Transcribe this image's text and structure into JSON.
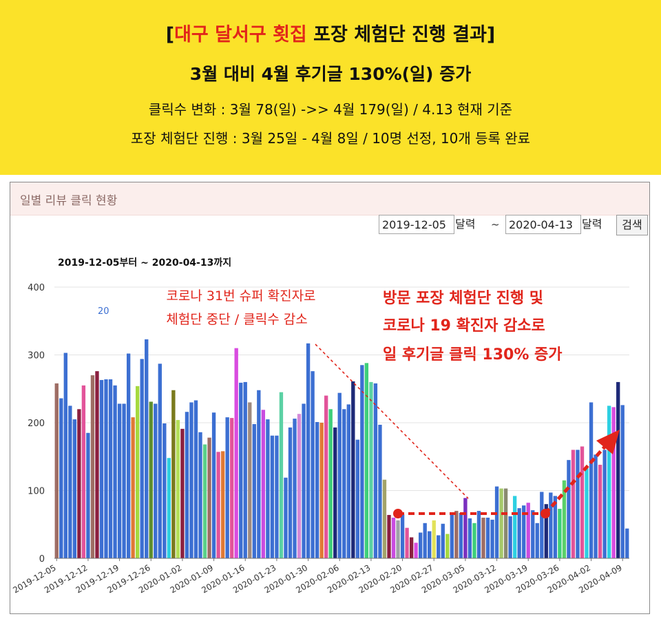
{
  "header": {
    "title_open": "[",
    "title_highlight": "대구 달서구 횟집",
    "title_rest": " 포장 체험단 진행 결과]",
    "subtitle": "3월 대비 4월 후기글 130%(일) 증가",
    "line3": "클릭수 변화 : 3월 78(일) ->> 4월 179(일) / 4.13 현재 기준",
    "line4": "포장 체험단 진행 : 3월 25일 - 4월 8일 / 10명 선정, 10개 등록 완료",
    "background": "#fbe229",
    "highlight_color": "#e1251b"
  },
  "panel": {
    "title": "일별 리뷰 클릭 현황",
    "start_date": "2019-12-05",
    "end_date": "2020-04-13",
    "calendar_label": "달력",
    "tilde": "~",
    "search_label": "검색"
  },
  "chart_data": {
    "type": "bar",
    "title": "2019-12-05부터 ~ 2020-04-13까지",
    "legend_fragment": "20",
    "ylim": [
      0,
      400
    ],
    "yticks": [
      0,
      100,
      200,
      300,
      400
    ],
    "grid": true,
    "x_tick_labels": [
      "2019-12-05",
      "2019-12-12",
      "2019-12-19",
      "2019-12-26",
      "2020-01-02",
      "2020-01-09",
      "2020-01-16",
      "2020-01-23",
      "2020-01-30",
      "2020-02-06",
      "2020-02-13",
      "2020-02-20",
      "2020-02-27",
      "2020-03-05",
      "2020-03-12",
      "2020-03-19",
      "2020-03-26",
      "2020-04-02",
      "2020-04-09"
    ],
    "start_date": "2019-12-05",
    "values": [
      258,
      236,
      303,
      225,
      205,
      220,
      255,
      185,
      270,
      276,
      263,
      264,
      264,
      255,
      228,
      228,
      302,
      208,
      254,
      294,
      323,
      231,
      228,
      287,
      199,
      148,
      248,
      204,
      191,
      216,
      230,
      233,
      186,
      168,
      178,
      215,
      157,
      158,
      208,
      207,
      310,
      259,
      260,
      230,
      198,
      248,
      219,
      205,
      181,
      181,
      245,
      119,
      193,
      206,
      213,
      228,
      317,
      276,
      201,
      200,
      240,
      220,
      193,
      244,
      220,
      227,
      261,
      175,
      285,
      288,
      260,
      258,
      197,
      116,
      64,
      60,
      56,
      65,
      45,
      31,
      23,
      38,
      52,
      40,
      56,
      34,
      51,
      36,
      65,
      70,
      67,
      89,
      59,
      52,
      70,
      60,
      60,
      57,
      106,
      103,
      103,
      62,
      92,
      74,
      78,
      82,
      71,
      52,
      98,
      80,
      97,
      92,
      73,
      115,
      145,
      160,
      160,
      165,
      133,
      230,
      153,
      138,
      160,
      225,
      223,
      260,
      226,
      44
    ],
    "colors": [
      "#9e6d64",
      "#3c6fd2",
      "#3c6fd2",
      "#3c6fd2",
      "#3c6fd2",
      "#8b1f3f",
      "#e2549a",
      "#3c6fd2",
      "#9e6d64",
      "#8b1f3f",
      "#3c6fd2",
      "#3c6fd2",
      "#3c6fd2",
      "#3c6fd2",
      "#3c6fd2",
      "#3c6fd2",
      "#3c6fd2",
      "#e07a35",
      "#a6d93f",
      "#3c6fd2",
      "#3c6fd2",
      "#5f8f2f",
      "#3c6fd2",
      "#3c6fd2",
      "#3c6fd2",
      "#2ed0e2",
      "#7a7a1c",
      "#b5e05a",
      "#8b1f3f",
      "#3c6fd2",
      "#3c6fd2",
      "#3c6fd2",
      "#3c6fd2",
      "#5bd18a",
      "#9e6d64",
      "#3c6fd2",
      "#e2549a",
      "#e07a35",
      "#3c6fd2",
      "#e2549a",
      "#d94ce0",
      "#3c6fd2",
      "#3c6fd2",
      "#9e8a80",
      "#3c6fd2",
      "#3c6fd2",
      "#c94ce0",
      "#3c6fd2",
      "#3c6fd2",
      "#3c6fd2",
      "#5bd1a4",
      "#3c6fd2",
      "#3c6fd2",
      "#3c6fd2",
      "#d48ad8",
      "#3c6fd2",
      "#3c6fd2",
      "#3c6fd2",
      "#3c6fd2",
      "#e07a35",
      "#e2549a",
      "#3ecf7a",
      "#1e2a78",
      "#3c6fd2",
      "#3c6fd2",
      "#3c6fd2",
      "#1e2a78",
      "#3c6fd2",
      "#3c6fd2",
      "#3ecf7a",
      "#5bd1a4",
      "#3c6fd2",
      "#3c6fd2",
      "#a3a36a",
      "#8b1f3f",
      "#c94ce0",
      "#9ea3a8",
      "#3c6fd2",
      "#e2549a",
      "#8b1f3f",
      "#d94ce0",
      "#3c6fd2",
      "#3c6fd2",
      "#3c6fd2",
      "#e2e25a",
      "#3c6fd2",
      "#3c6fd2",
      "#a6d93f",
      "#3c6fd2",
      "#9e6d64",
      "#3c6fd2",
      "#7a2fbf",
      "#3c6fd2",
      "#3ecf7a",
      "#3c6fd2",
      "#9e6d64",
      "#3c6fd2",
      "#3c6fd2",
      "#3c6fd2",
      "#a6c96a",
      "#8a8a70",
      "#3c6fd2",
      "#2ed0e2",
      "#3c6fd2",
      "#3c6fd2",
      "#c94ce0",
      "#3c6fd2",
      "#3c6fd2",
      "#3c6fd2",
      "#1e2a78",
      "#3c6fd2",
      "#3c6fd2",
      "#3ecf7a",
      "#5bd16a",
      "#3c6fd2",
      "#e2549a",
      "#3c6fd2",
      "#e2549a",
      "#2ed0e2",
      "#3c6fd2",
      "#3c6fd2",
      "#e2549a",
      "#3c6fd2",
      "#2ed0e2",
      "#d94ce0",
      "#1e2a78",
      "#3c6fd2",
      "#3c6fd2"
    ],
    "annotations": {
      "covid_note_line1": "코로나 31번 슈퍼 확진자로",
      "covid_note_line2": "체험단 중단 / 클릭수 감소",
      "result_note_line1": "방문 포장 체험단 진행 및",
      "result_note_line2": "코로나 19 확진자 감소로",
      "result_note_line3": "일 후기글 클릭 130% 증가",
      "note_color": "#e1251b"
    }
  }
}
